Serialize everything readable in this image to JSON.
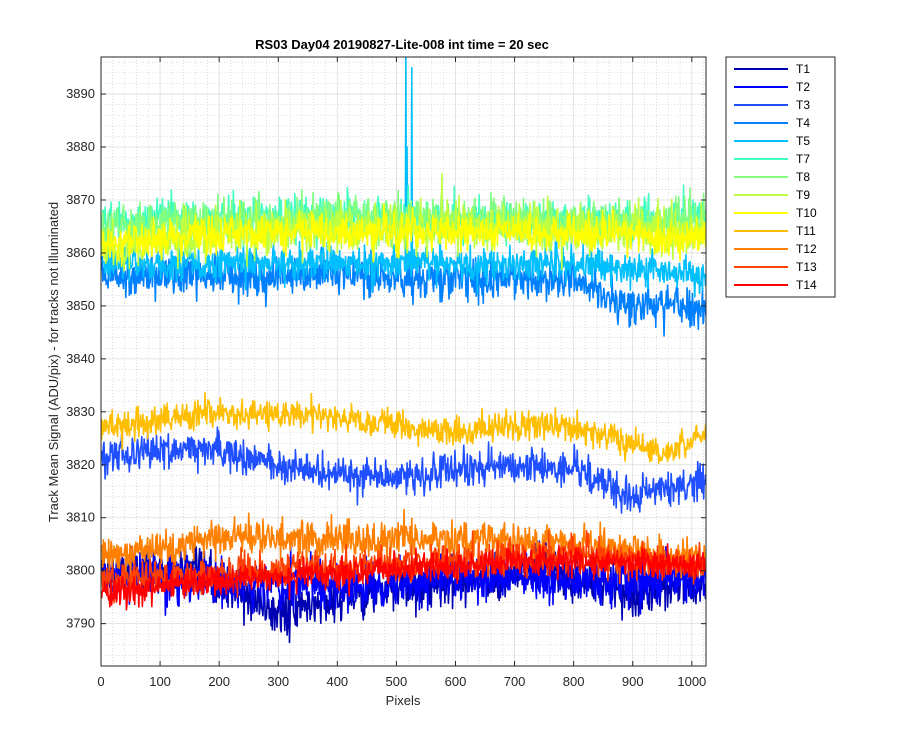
{
  "chart_data": {
    "type": "line",
    "title": "RS03 Day04 20190827-Lite-008 int time = 20 sec",
    "xlabel": "Pixels",
    "ylabel": "Track Mean Signal (ADU/pix) - for tracks not illuminated",
    "xlim": [
      0,
      1024
    ],
    "ylim": [
      3782,
      3897
    ],
    "x_ticks": [
      0,
      100,
      200,
      300,
      400,
      500,
      600,
      700,
      800,
      900,
      1000
    ],
    "y_ticks": [
      3790,
      3800,
      3810,
      3820,
      3830,
      3840,
      3850,
      3860,
      3870,
      3880,
      3890
    ],
    "grid": true,
    "minor_grid": true,
    "legend_position": "outside-top-right",
    "samples": 1024,
    "series": [
      {
        "name": "T1",
        "color": "#0000b3",
        "base": 3797,
        "noise": 4.0,
        "trend": [
          [
            0,
            3800
          ],
          [
            150,
            3800
          ],
          [
            300,
            3792
          ],
          [
            450,
            3796
          ],
          [
            600,
            3798
          ],
          [
            750,
            3800
          ],
          [
            900,
            3796
          ],
          [
            1024,
            3798
          ]
        ]
      },
      {
        "name": "T2",
        "color": "#0000ff",
        "base": 3798,
        "noise": 4.0,
        "trend": [
          [
            0,
            3799
          ],
          [
            200,
            3798
          ],
          [
            400,
            3797
          ],
          [
            600,
            3799
          ],
          [
            800,
            3798
          ],
          [
            1024,
            3799
          ]
        ]
      },
      {
        "name": "T3",
        "color": "#1f4fff",
        "base": 3820,
        "noise": 3.0,
        "trend": [
          [
            0,
            3822
          ],
          [
            200,
            3823
          ],
          [
            300,
            3820
          ],
          [
            400,
            3818
          ],
          [
            550,
            3818
          ],
          [
            700,
            3820
          ],
          [
            800,
            3819
          ],
          [
            900,
            3814
          ],
          [
            1024,
            3817
          ]
        ]
      },
      {
        "name": "T4",
        "color": "#0080ff",
        "base": 3856,
        "noise": 3.5,
        "trend": [
          [
            0,
            3856
          ],
          [
            200,
            3856
          ],
          [
            400,
            3856
          ],
          [
            600,
            3855
          ],
          [
            800,
            3855
          ],
          [
            900,
            3850
          ],
          [
            1024,
            3850
          ]
        ]
      },
      {
        "name": "T5",
        "color": "#00bfff",
        "base": 3858,
        "noise": 3.0,
        "trend": [
          [
            0,
            3858
          ],
          [
            500,
            3858
          ],
          [
            800,
            3858
          ],
          [
            1024,
            3856
          ]
        ]
      },
      {
        "name": "T7",
        "color": "#40ffbf",
        "base": 3866,
        "noise": 3.5,
        "trend": [
          [
            0,
            3866
          ],
          [
            300,
            3867
          ],
          [
            600,
            3866
          ],
          [
            1024,
            3866
          ]
        ]
      },
      {
        "name": "T8",
        "color": "#80ff80",
        "base": 3866,
        "noise": 3.5,
        "trend": [
          [
            0,
            3865
          ],
          [
            400,
            3867
          ],
          [
            800,
            3866
          ],
          [
            1024,
            3866
          ]
        ]
      },
      {
        "name": "T9",
        "color": "#bfff40",
        "base": 3863,
        "noise": 4.0,
        "trend": [
          [
            0,
            3860
          ],
          [
            200,
            3864
          ],
          [
            600,
            3865
          ],
          [
            1024,
            3864
          ]
        ]
      },
      {
        "name": "T10",
        "color": "#ffff00",
        "base": 3863,
        "noise": 3.0,
        "trend": [
          [
            0,
            3862
          ],
          [
            300,
            3864
          ],
          [
            700,
            3864
          ],
          [
            1024,
            3863
          ]
        ]
      },
      {
        "name": "T11",
        "color": "#ffbf00",
        "base": 3828,
        "noise": 2.5,
        "trend": [
          [
            0,
            3827
          ],
          [
            200,
            3830
          ],
          [
            400,
            3829
          ],
          [
            600,
            3826
          ],
          [
            750,
            3828
          ],
          [
            850,
            3826
          ],
          [
            950,
            3822
          ],
          [
            1024,
            3826
          ]
        ]
      },
      {
        "name": "T12",
        "color": "#ff8000",
        "base": 3805,
        "noise": 3.0,
        "trend": [
          [
            0,
            3803
          ],
          [
            200,
            3806
          ],
          [
            400,
            3806
          ],
          [
            600,
            3806
          ],
          [
            800,
            3805
          ],
          [
            1024,
            3802
          ]
        ]
      },
      {
        "name": "T13",
        "color": "#ff4000",
        "base": 3800,
        "noise": 3.0,
        "trend": [
          [
            0,
            3798
          ],
          [
            300,
            3800
          ],
          [
            600,
            3802
          ],
          [
            800,
            3803
          ],
          [
            1024,
            3801
          ]
        ]
      },
      {
        "name": "T14",
        "color": "#ff0000",
        "base": 3800,
        "noise": 2.5,
        "trend": [
          [
            0,
            3796
          ],
          [
            300,
            3799
          ],
          [
            600,
            3801
          ],
          [
            800,
            3802
          ],
          [
            1024,
            3801
          ]
        ]
      }
    ],
    "spikes": [
      {
        "series": "T5",
        "x": 516,
        "y": 3897
      },
      {
        "series": "T5",
        "x": 526,
        "y": 3895
      },
      {
        "series": "T5",
        "x": 518,
        "y": 3880
      }
    ]
  }
}
